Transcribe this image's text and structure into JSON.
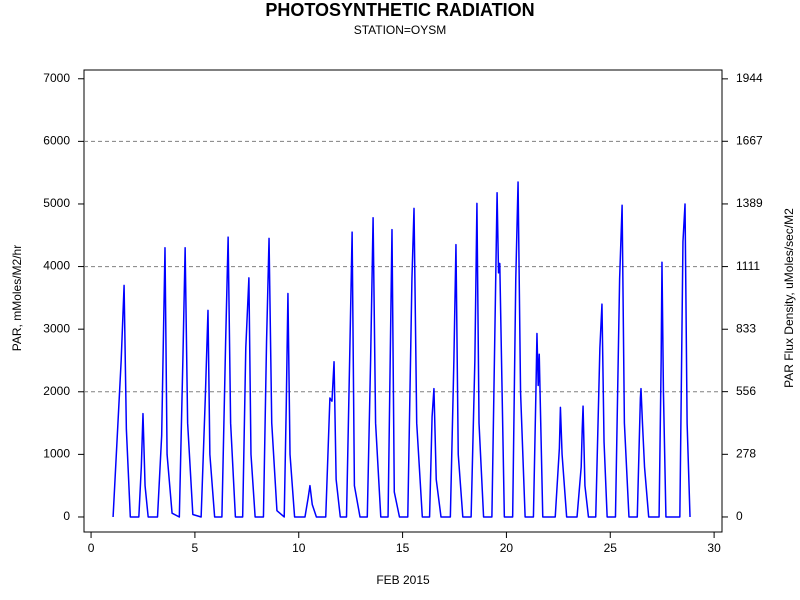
{
  "chart_data": {
    "type": "line",
    "title": "PHOTOSYNTHETIC RADIATION",
    "subtitle": "STATION=OYSM",
    "x_label": "FEB 2015",
    "y_label": "PAR, mMoles/M2/hr",
    "y2_label": "PAR Flux Density, uMoles/sec/M2",
    "color": "#0000ff",
    "x": [
      1.06,
      1.45,
      1.59,
      1.7,
      1.89,
      2.3,
      2.42,
      2.5,
      2.6,
      2.75,
      3.2,
      3.4,
      3.56,
      3.66,
      3.9,
      4.25,
      4.42,
      4.53,
      4.65,
      4.9,
      5.3,
      5.5,
      5.63,
      5.72,
      5.95,
      6.3,
      6.48,
      6.6,
      6.72,
      6.95,
      7.3,
      7.45,
      7.6,
      7.7,
      7.9,
      8.3,
      8.45,
      8.57,
      8.7,
      8.95,
      9.3,
      9.4,
      9.48,
      9.58,
      9.8,
      10.3,
      10.45,
      10.54,
      10.65,
      10.85,
      11.3,
      11.5,
      11.6,
      11.7,
      11.8,
      12.0,
      12.3,
      12.45,
      12.57,
      12.68,
      12.95,
      13.3,
      13.46,
      13.58,
      13.7,
      13.95,
      14.3,
      14.42,
      14.49,
      14.6,
      14.85,
      15.25,
      15.45,
      15.55,
      15.68,
      15.95,
      16.3,
      16.42,
      16.51,
      16.62,
      16.85,
      17.3,
      17.47,
      17.57,
      17.68,
      17.9,
      18.3,
      18.48,
      18.58,
      18.68,
      18.9,
      19.3,
      19.47,
      19.55,
      19.62,
      19.68,
      19.9,
      20.3,
      20.45,
      20.56,
      20.68,
      20.9,
      21.3,
      21.42,
      21.47,
      21.53,
      21.58,
      21.75,
      22.35,
      22.55,
      22.6,
      22.68,
      22.9,
      23.4,
      23.6,
      23.65,
      23.69,
      23.78,
      23.95,
      24.3,
      24.5,
      24.6,
      24.7,
      24.85,
      25.25,
      25.45,
      25.57,
      25.68,
      25.9,
      26.3,
      26.45,
      26.48,
      26.55,
      26.65,
      26.85,
      27.35,
      27.45,
      27.49,
      27.56,
      27.68,
      27.85,
      28.35,
      28.5,
      28.6,
      28.7,
      28.84
    ],
    "values": [
      0,
      2500,
      3700,
      1400,
      0,
      0,
      800,
      1650,
      500,
      0,
      0,
      1300,
      4300,
      1000,
      60,
      0,
      2500,
      4300,
      1500,
      40,
      0,
      1900,
      3300,
      1000,
      0,
      0,
      2800,
      4470,
      1500,
      0,
      0,
      2700,
      3820,
      1000,
      0,
      0,
      2800,
      4450,
      1500,
      100,
      0,
      1800,
      3570,
      1000,
      0,
      0,
      300,
      500,
      200,
      0,
      0,
      1900,
      1850,
      2480,
      600,
      0,
      0,
      2500,
      4550,
      500,
      0,
      0,
      2500,
      4780,
      1500,
      0,
      0,
      2900,
      4590,
      400,
      0,
      0,
      3800,
      4930,
      1500,
      0,
      0,
      1600,
      2050,
      600,
      0,
      0,
      2500,
      4350,
      1000,
      0,
      0,
      2500,
      5010,
      1500,
      0,
      0,
      3500,
      5180,
      3900,
      4050,
      0,
      0,
      3800,
      5350,
      2000,
      0,
      0,
      2000,
      2930,
      2100,
      2600,
      0,
      0,
      1100,
      1750,
      1000,
      0,
      0,
      800,
      1400,
      1770,
      500,
      0,
      0,
      2700,
      3400,
      1200,
      0,
      0,
      3800,
      4980,
      1500,
      0,
      0,
      1900,
      2050,
      1500,
      800,
      0,
      0,
      2500,
      4070,
      2000,
      0,
      0,
      0,
      4400,
      5000,
      1500,
      0
    ],
    "xlim": [
      -0.34,
      30.38
    ],
    "xticks": [
      0,
      5,
      10,
      15,
      20,
      25,
      30
    ],
    "ylim": [
      -240,
      7140
    ],
    "yticks": [
      0,
      1000,
      2000,
      3000,
      4000,
      5000,
      6000,
      7000
    ],
    "y2lim": [
      -66.7,
      1983.3
    ],
    "y2ticks": [
      0,
      278,
      556,
      833,
      1111,
      1389,
      1667,
      1944
    ],
    "ygrid": [
      2000,
      4000,
      6000
    ]
  }
}
